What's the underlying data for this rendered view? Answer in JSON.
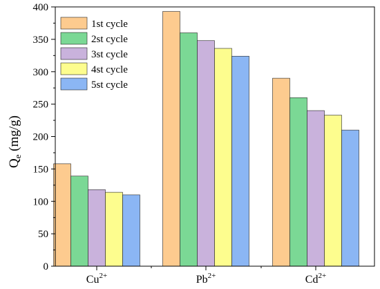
{
  "chart_data": {
    "type": "bar",
    "title": "",
    "xlabel": "",
    "ylabel_main": "Q",
    "ylabel_sub": "e",
    "ylabel_rest": " (mg/g)",
    "categories": [
      {
        "base": "Cu",
        "sup": "2+"
      },
      {
        "base": "Pb",
        "sup": "2+"
      },
      {
        "base": "Cd",
        "sup": "2+"
      }
    ],
    "ylim": [
      0,
      400
    ],
    "yticks": [
      0,
      50,
      100,
      150,
      200,
      250,
      300,
      350,
      400
    ],
    "grid": false,
    "legend_position": "top-left",
    "series": [
      {
        "name": "1st cycle",
        "color": "#FDCB8F",
        "values": [
          158,
          393,
          290
        ]
      },
      {
        "name": "2st cycle",
        "color": "#7BD895",
        "values": [
          139,
          360,
          260
        ]
      },
      {
        "name": "3st cycle",
        "color": "#C9B2DC",
        "values": [
          118,
          348,
          240
        ]
      },
      {
        "name": "4st cycle",
        "color": "#FDFD8E",
        "values": [
          114,
          336,
          233
        ]
      },
      {
        "name": "5st cycle",
        "color": "#8BB6F4",
        "values": [
          110,
          324,
          210
        ]
      }
    ]
  }
}
